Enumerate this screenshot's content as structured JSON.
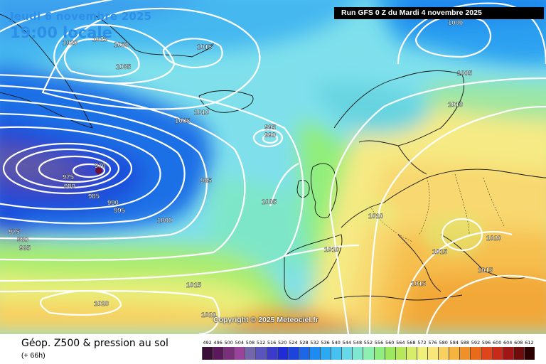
{
  "header": {
    "date": "Jeudi 6 novembre 2025",
    "time": "19:00 locale",
    "run": "Run GFS 0 Z du Mardi 4 novembre 2025"
  },
  "footer": {
    "title": "Géop. Z500 & pression au sol",
    "lead": "(+ 66h)",
    "copyright": "Copyright © 2025 Meteociel.fr"
  },
  "legend": {
    "ticks": [
      "492",
      "496",
      "500",
      "504",
      "508",
      "512",
      "516",
      "520",
      "524",
      "528",
      "532",
      "536",
      "540",
      "544",
      "548",
      "552",
      "556",
      "560",
      "564",
      "568",
      "572",
      "576",
      "580",
      "584",
      "588",
      "592",
      "596",
      "600",
      "604",
      "608",
      "612"
    ],
    "colors": [
      "#3a0f3a",
      "#5a1a5a",
      "#7a2f7a",
      "#99449a",
      "#7466aa",
      "#5a55bb",
      "#3b3bc9",
      "#1f2bd6",
      "#1c44dd",
      "#1d66e6",
      "#1f8af0",
      "#2ba9f2",
      "#47c2f0",
      "#66d8e8",
      "#7fe6d0",
      "#8ef0b0",
      "#90ee80",
      "#9ce860",
      "#b5e85a",
      "#d6ec6a",
      "#eef07a",
      "#f8e67a",
      "#f8d060",
      "#f5b440",
      "#f09028",
      "#ea6a1c",
      "#e0441a",
      "#c82a1a",
      "#a01614",
      "#700c0c",
      "#2a0000"
    ]
  },
  "isobar_labels": [
    {
      "text": "1020"
    },
    {
      "text": "1025"
    },
    {
      "text": "1030"
    },
    {
      "text": "1035"
    },
    {
      "text": "1015"
    },
    {
      "text": "1010"
    },
    {
      "text": "1005"
    },
    {
      "text": "995"
    },
    {
      "text": "990"
    },
    {
      "text": "970"
    },
    {
      "text": "975"
    },
    {
      "text": "980"
    },
    {
      "text": "985"
    },
    {
      "text": "990"
    },
    {
      "text": "995"
    },
    {
      "text": "985"
    },
    {
      "text": "1000"
    },
    {
      "text": "1005"
    },
    {
      "text": "975"
    },
    {
      "text": "980"
    },
    {
      "text": "985"
    },
    {
      "text": "1015"
    },
    {
      "text": "1020"
    },
    {
      "text": "1020"
    },
    {
      "text": "1000"
    },
    {
      "text": "1005"
    },
    {
      "text": "1010"
    },
    {
      "text": "1010"
    },
    {
      "text": "1010"
    },
    {
      "text": "1015"
    },
    {
      "text": "1015"
    },
    {
      "text": "1020"
    },
    {
      "text": "1015"
    }
  ]
}
